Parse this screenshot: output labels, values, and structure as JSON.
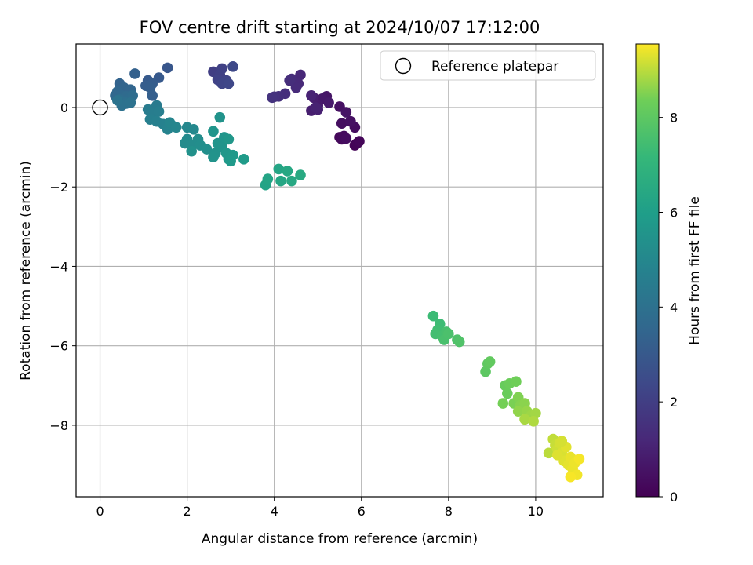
{
  "chart_data": {
    "type": "scatter",
    "title": "FOV centre drift starting at 2024/10/07 17:12:00",
    "xlabel": "Angular distance from reference (arcmin)",
    "ylabel": "Rotation from reference (arcmin)",
    "xlim": [
      -0.55,
      11.55
    ],
    "ylim": [
      -9.8,
      1.6
    ],
    "xticks": [
      0,
      2,
      4,
      6,
      8,
      10
    ],
    "yticks": [
      -8,
      -6,
      -4,
      -2,
      0
    ],
    "xtick_labels": [
      "0",
      "2",
      "4",
      "6",
      "8",
      "10"
    ],
    "ytick_labels": [
      "−8",
      "−6",
      "−4",
      "−2",
      "0"
    ],
    "grid": true,
    "colorbar": {
      "label": "Hours from first FF file",
      "colormap": "viridis",
      "range": [
        0,
        9.55
      ],
      "ticks": [
        0,
        2,
        4,
        6,
        8
      ],
      "tick_labels": [
        "0",
        "2",
        "4",
        "6",
        "8"
      ]
    },
    "legend": {
      "location": "top-right",
      "entries": [
        "Reference platepar"
      ]
    },
    "reference_point": {
      "x": 0,
      "y": 0,
      "label": "Reference platepar"
    },
    "points": [
      {
        "x": 5.85,
        "y": -0.95,
        "t": 0.05
      },
      {
        "x": 5.9,
        "y": -0.9,
        "t": 0.1
      },
      {
        "x": 5.95,
        "y": -0.85,
        "t": 0.15
      },
      {
        "x": 5.5,
        "y": -0.75,
        "t": 0.2
      },
      {
        "x": 5.55,
        "y": -0.8,
        "t": 0.25
      },
      {
        "x": 5.6,
        "y": -0.72,
        "t": 0.3
      },
      {
        "x": 5.65,
        "y": -0.78,
        "t": 0.35
      },
      {
        "x": 5.85,
        "y": -0.5,
        "t": 0.35
      },
      {
        "x": 5.55,
        "y": -0.4,
        "t": 0.4
      },
      {
        "x": 5.75,
        "y": -0.35,
        "t": 0.45
      },
      {
        "x": 5.5,
        "y": 0.02,
        "t": 0.5
      },
      {
        "x": 5.65,
        "y": -0.12,
        "t": 0.55
      },
      {
        "x": 5.2,
        "y": 0.28,
        "t": 0.6
      },
      {
        "x": 5.1,
        "y": 0.22,
        "t": 0.7
      },
      {
        "x": 5.25,
        "y": 0.12,
        "t": 0.75
      },
      {
        "x": 5.0,
        "y": 0.05,
        "t": 0.8
      },
      {
        "x": 4.9,
        "y": 0.25,
        "t": 0.85
      },
      {
        "x": 4.85,
        "y": -0.08,
        "t": 0.9
      },
      {
        "x": 5.0,
        "y": -0.05,
        "t": 0.95
      },
      {
        "x": 4.95,
        "y": 0.0,
        "t": 1.0
      },
      {
        "x": 4.85,
        "y": 0.3,
        "t": 1.05
      },
      {
        "x": 4.6,
        "y": 0.82,
        "t": 1.2
      },
      {
        "x": 4.55,
        "y": 0.6,
        "t": 1.25
      },
      {
        "x": 4.5,
        "y": 0.5,
        "t": 1.3
      },
      {
        "x": 4.4,
        "y": 0.72,
        "t": 1.35
      },
      {
        "x": 4.35,
        "y": 0.68,
        "t": 1.4
      },
      {
        "x": 4.25,
        "y": 0.35,
        "t": 1.45
      },
      {
        "x": 4.1,
        "y": 0.28,
        "t": 1.5
      },
      {
        "x": 4.0,
        "y": 0.27,
        "t": 1.55
      },
      {
        "x": 3.95,
        "y": 0.25,
        "t": 1.6
      },
      {
        "x": 2.6,
        "y": 0.9,
        "t": 2.0
      },
      {
        "x": 2.75,
        "y": 0.82,
        "t": 2.05
      },
      {
        "x": 2.8,
        "y": 0.98,
        "t": 2.1
      },
      {
        "x": 2.7,
        "y": 0.7,
        "t": 2.15
      },
      {
        "x": 2.9,
        "y": 0.68,
        "t": 2.2
      },
      {
        "x": 2.8,
        "y": 0.6,
        "t": 2.25
      },
      {
        "x": 2.95,
        "y": 0.6,
        "t": 2.3
      },
      {
        "x": 3.05,
        "y": 1.03,
        "t": 2.35
      },
      {
        "x": 1.55,
        "y": 1.0,
        "t": 2.9
      },
      {
        "x": 1.35,
        "y": 0.75,
        "t": 3.0
      },
      {
        "x": 1.1,
        "y": 0.68,
        "t": 3.05
      },
      {
        "x": 1.2,
        "y": 0.6,
        "t": 3.1
      },
      {
        "x": 1.05,
        "y": 0.55,
        "t": 3.15
      },
      {
        "x": 1.15,
        "y": 0.5,
        "t": 3.2
      },
      {
        "x": 1.2,
        "y": 0.3,
        "t": 3.25
      },
      {
        "x": 0.8,
        "y": 0.85,
        "t": 3.3
      },
      {
        "x": 0.45,
        "y": 0.6,
        "t": 3.4
      },
      {
        "x": 0.55,
        "y": 0.5,
        "t": 3.45
      },
      {
        "x": 0.7,
        "y": 0.45,
        "t": 3.5
      },
      {
        "x": 0.4,
        "y": 0.4,
        "t": 3.55
      },
      {
        "x": 0.35,
        "y": 0.3,
        "t": 3.6
      },
      {
        "x": 0.5,
        "y": 0.3,
        "t": 3.65
      },
      {
        "x": 0.6,
        "y": 0.28,
        "t": 3.7
      },
      {
        "x": 0.7,
        "y": 0.25,
        "t": 3.75
      },
      {
        "x": 0.75,
        "y": 0.3,
        "t": 3.8
      },
      {
        "x": 0.45,
        "y": 0.2,
        "t": 3.85
      },
      {
        "x": 0.55,
        "y": 0.15,
        "t": 3.9
      },
      {
        "x": 0.6,
        "y": 0.1,
        "t": 3.95
      },
      {
        "x": 0.5,
        "y": 0.05,
        "t": 4.0
      },
      {
        "x": 0.7,
        "y": 0.12,
        "t": 4.05
      },
      {
        "x": 0.4,
        "y": 0.18,
        "t": 4.1
      },
      {
        "x": 1.3,
        "y": 0.05,
        "t": 4.4
      },
      {
        "x": 1.25,
        "y": -0.05,
        "t": 4.45
      },
      {
        "x": 1.1,
        "y": -0.05,
        "t": 4.5
      },
      {
        "x": 1.2,
        "y": -0.15,
        "t": 4.55
      },
      {
        "x": 1.35,
        "y": -0.1,
        "t": 4.6
      },
      {
        "x": 1.15,
        "y": -0.3,
        "t": 4.65
      },
      {
        "x": 1.3,
        "y": -0.35,
        "t": 4.7
      },
      {
        "x": 1.45,
        "y": -0.42,
        "t": 4.75
      },
      {
        "x": 1.55,
        "y": -0.55,
        "t": 4.8
      },
      {
        "x": 1.65,
        "y": -0.45,
        "t": 4.85
      },
      {
        "x": 1.6,
        "y": -0.38,
        "t": 4.9
      },
      {
        "x": 1.75,
        "y": -0.5,
        "t": 4.95
      },
      {
        "x": 2.0,
        "y": -0.5,
        "t": 5.0
      },
      {
        "x": 2.15,
        "y": -0.55,
        "t": 5.05
      },
      {
        "x": 2.0,
        "y": -0.8,
        "t": 5.1
      },
      {
        "x": 1.95,
        "y": -0.9,
        "t": 5.15
      },
      {
        "x": 2.1,
        "y": -0.95,
        "t": 5.2
      },
      {
        "x": 2.25,
        "y": -0.8,
        "t": 5.25
      },
      {
        "x": 2.3,
        "y": -0.95,
        "t": 5.3
      },
      {
        "x": 2.45,
        "y": -1.05,
        "t": 5.35
      },
      {
        "x": 2.1,
        "y": -1.1,
        "t": 5.4
      },
      {
        "x": 2.65,
        "y": -1.15,
        "t": 5.45
      },
      {
        "x": 2.6,
        "y": -1.25,
        "t": 5.5
      },
      {
        "x": 2.8,
        "y": -1.0,
        "t": 5.55
      },
      {
        "x": 2.7,
        "y": -0.9,
        "t": 5.55
      },
      {
        "x": 2.85,
        "y": -0.75,
        "t": 5.6
      },
      {
        "x": 2.9,
        "y": -1.15,
        "t": 5.65
      },
      {
        "x": 2.95,
        "y": -1.3,
        "t": 5.7
      },
      {
        "x": 3.05,
        "y": -1.2,
        "t": 5.75
      },
      {
        "x": 3.0,
        "y": -1.35,
        "t": 5.8
      },
      {
        "x": 3.3,
        "y": -1.3,
        "t": 5.85
      },
      {
        "x": 2.6,
        "y": -0.6,
        "t": 5.6
      },
      {
        "x": 2.75,
        "y": -0.25,
        "t": 5.5
      },
      {
        "x": 2.95,
        "y": -0.8,
        "t": 5.65
      },
      {
        "x": 3.8,
        "y": -1.95,
        "t": 6.2
      },
      {
        "x": 3.85,
        "y": -1.8,
        "t": 6.25
      },
      {
        "x": 4.1,
        "y": -1.55,
        "t": 6.3
      },
      {
        "x": 4.15,
        "y": -1.85,
        "t": 6.35
      },
      {
        "x": 4.3,
        "y": -1.6,
        "t": 6.4
      },
      {
        "x": 4.4,
        "y": -1.85,
        "t": 6.45
      },
      {
        "x": 4.6,
        "y": -1.7,
        "t": 6.5
      },
      {
        "x": 7.65,
        "y": -5.25,
        "t": 7.3
      },
      {
        "x": 7.8,
        "y": -5.45,
        "t": 7.35
      },
      {
        "x": 7.75,
        "y": -5.6,
        "t": 7.4
      },
      {
        "x": 7.7,
        "y": -5.7,
        "t": 7.45
      },
      {
        "x": 7.85,
        "y": -5.75,
        "t": 7.5
      },
      {
        "x": 7.95,
        "y": -5.65,
        "t": 7.55
      },
      {
        "x": 7.9,
        "y": -5.85,
        "t": 7.6
      },
      {
        "x": 8.0,
        "y": -5.7,
        "t": 7.65
      },
      {
        "x": 8.2,
        "y": -5.85,
        "t": 7.7
      },
      {
        "x": 8.25,
        "y": -5.9,
        "t": 7.75
      },
      {
        "x": 8.85,
        "y": -6.65,
        "t": 8.0
      },
      {
        "x": 8.9,
        "y": -6.45,
        "t": 8.05
      },
      {
        "x": 8.95,
        "y": -6.4,
        "t": 8.1
      },
      {
        "x": 9.3,
        "y": -7.0,
        "t": 8.2
      },
      {
        "x": 9.35,
        "y": -7.2,
        "t": 8.25
      },
      {
        "x": 9.4,
        "y": -6.95,
        "t": 8.3
      },
      {
        "x": 9.55,
        "y": -6.9,
        "t": 8.35
      },
      {
        "x": 9.25,
        "y": -7.45,
        "t": 8.4
      },
      {
        "x": 9.5,
        "y": -7.45,
        "t": 8.45
      },
      {
        "x": 9.6,
        "y": -7.3,
        "t": 8.5
      },
      {
        "x": 9.65,
        "y": -7.5,
        "t": 8.55
      },
      {
        "x": 9.75,
        "y": -7.45,
        "t": 8.6
      },
      {
        "x": 9.6,
        "y": -7.65,
        "t": 8.65
      },
      {
        "x": 9.8,
        "y": -7.65,
        "t": 8.7
      },
      {
        "x": 9.9,
        "y": -7.75,
        "t": 8.75
      },
      {
        "x": 10.0,
        "y": -7.7,
        "t": 8.8
      },
      {
        "x": 9.75,
        "y": -7.85,
        "t": 8.85
      },
      {
        "x": 9.95,
        "y": -7.9,
        "t": 8.9
      },
      {
        "x": 10.3,
        "y": -8.7,
        "t": 9.0
      },
      {
        "x": 10.4,
        "y": -8.35,
        "t": 9.05
      },
      {
        "x": 10.45,
        "y": -8.5,
        "t": 9.1
      },
      {
        "x": 10.5,
        "y": -8.6,
        "t": 9.15
      },
      {
        "x": 10.55,
        "y": -8.45,
        "t": 9.2
      },
      {
        "x": 10.6,
        "y": -8.7,
        "t": 9.25
      },
      {
        "x": 10.65,
        "y": -8.9,
        "t": 9.3
      },
      {
        "x": 10.7,
        "y": -8.55,
        "t": 9.32
      },
      {
        "x": 10.75,
        "y": -9.0,
        "t": 9.35
      },
      {
        "x": 10.8,
        "y": -8.8,
        "t": 9.38
      },
      {
        "x": 10.85,
        "y": -9.1,
        "t": 9.4
      },
      {
        "x": 10.9,
        "y": -8.95,
        "t": 9.42
      },
      {
        "x": 10.95,
        "y": -9.25,
        "t": 9.45
      },
      {
        "x": 11.0,
        "y": -8.85,
        "t": 9.48
      },
      {
        "x": 10.8,
        "y": -9.3,
        "t": 9.5
      },
      {
        "x": 10.5,
        "y": -8.75,
        "t": 9.28
      },
      {
        "x": 10.6,
        "y": -8.4,
        "t": 9.22
      }
    ]
  }
}
